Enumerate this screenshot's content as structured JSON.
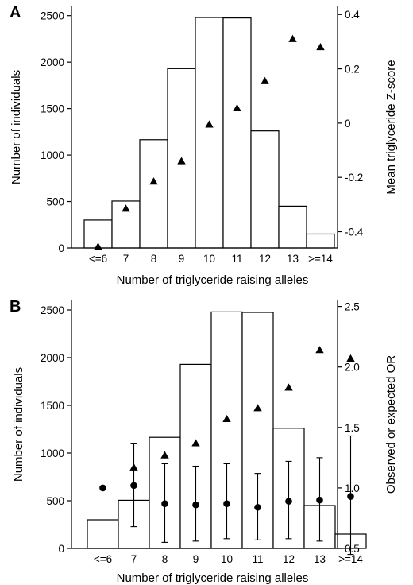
{
  "chart_data": [
    {
      "panel": "A",
      "type": "bar",
      "categories": [
        "<=6",
        "7",
        "8",
        "9",
        "10",
        "11",
        "12",
        "13",
        ">=14"
      ],
      "xlabel": "Number of triglyceride raising alleles",
      "ylabel": "Number of individuals",
      "ylim": [
        0,
        2600
      ],
      "yticks": [
        0,
        500,
        1000,
        1500,
        2000,
        2500
      ],
      "y2label": "Mean triglyceride Z-score",
      "y2lim": [
        -0.46,
        0.43
      ],
      "y2ticks": [
        -0.4,
        -0.2,
        0,
        0.2,
        0.4
      ],
      "y2ticklabels": [
        "-0.4",
        "-0.2",
        "0",
        "0.2",
        "0.4"
      ],
      "series": [
        {
          "values": [
            300,
            505,
            1165,
            1930,
            2480,
            2475,
            1260,
            450,
            150
          ],
          "marker": "bar",
          "axis": "left"
        },
        {
          "values": [
            -0.455,
            -0.315,
            -0.215,
            -0.14,
            -0.005,
            0.055,
            0.155,
            0.31,
            0.28
          ],
          "marker": "triangle",
          "axis": "right"
        }
      ]
    },
    {
      "panel": "B",
      "type": "bar",
      "categories": [
        "<=6",
        "7",
        "8",
        "9",
        "10",
        "11",
        "12",
        "13",
        ">=14"
      ],
      "xlabel": "Number of triglyceride raising alleles",
      "ylabel": "Number of individuals",
      "ylim": [
        0,
        2600
      ],
      "yticks": [
        0,
        500,
        1000,
        1500,
        2000,
        2500
      ],
      "y2label": "Observed or expected OR",
      "y2lim": [
        0.5,
        2.55
      ],
      "y2ticks": [
        0.5,
        1.0,
        1.5,
        2.0,
        2.5
      ],
      "y2ticklabels": [
        "0.5",
        "1.0",
        "1.5",
        "2.0",
        "2.5"
      ],
      "series": [
        {
          "values": [
            300,
            505,
            1165,
            1930,
            2480,
            2475,
            1260,
            450,
            150
          ],
          "marker": "bar",
          "axis": "left"
        },
        {
          "values": [
            null,
            1.17,
            1.27,
            1.37,
            1.57,
            1.66,
            1.83,
            2.14,
            2.07
          ],
          "marker": "triangle",
          "axis": "right"
        },
        {
          "values": [
            1.0,
            1.02,
            0.87,
            0.86,
            0.87,
            0.84,
            0.89,
            0.9,
            0.93
          ],
          "error_low": [
            null,
            0.68,
            0.55,
            0.56,
            0.58,
            0.57,
            0.58,
            0.56,
            0.45
          ],
          "error_high": [
            null,
            1.37,
            1.2,
            1.18,
            1.2,
            1.12,
            1.22,
            1.25,
            1.43
          ],
          "marker": "circle",
          "axis": "right"
        }
      ]
    }
  ]
}
